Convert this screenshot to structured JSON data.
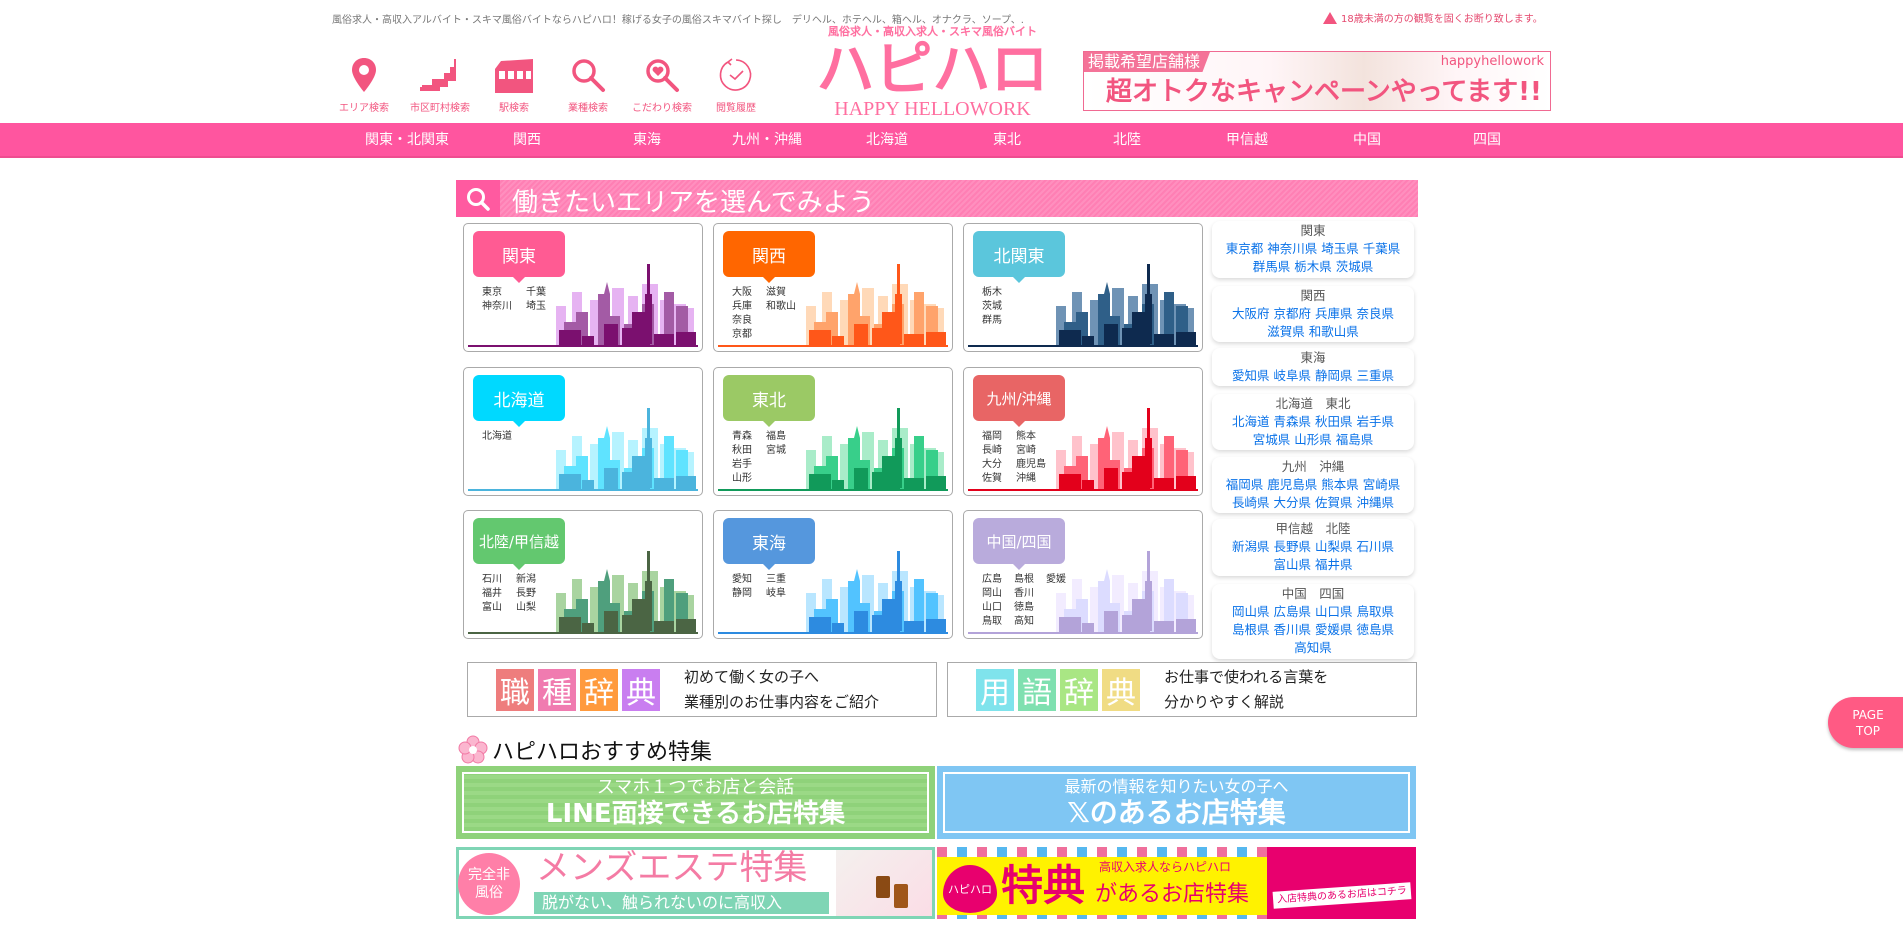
{
  "header": {
    "tagline": "風俗求人・高収入アルバイト・スキマ風俗バイトならハピハロ！稼げる女子の風俗スキマバイト探し　デリヘル、ホテヘル、箱ヘル、オナクラ、ソープ、.",
    "age_warning": "18歳未満の方の観覧を固くお断り致します。",
    "logo": {
      "subtitle": "風俗求人・高収入求人・スキマ風俗バイト",
      "main": "ハピハロ",
      "english": "HAPPY HELLOWORK"
    },
    "nav_icons": [
      {
        "label": "エリア検索",
        "icon": "map-pin-icon"
      },
      {
        "label": "市区町村検索",
        "icon": "japan-map-icon"
      },
      {
        "label": "駅検索",
        "icon": "train-icon"
      },
      {
        "label": "業種検索",
        "icon": "search-icon"
      },
      {
        "label": "こだわり検索",
        "icon": "heart-search-icon"
      },
      {
        "label": "閲覧履歴",
        "icon": "history-clock-icon"
      }
    ],
    "ad_banner": {
      "tag": "掲載希望店舗様",
      "brand": "happyhellowork",
      "message": "超オトクなキャンペーンやってます!!"
    }
  },
  "region_nav": [
    "関東・北関東",
    "関西",
    "東海",
    "九州・沖縄",
    "北海道",
    "東北",
    "北陸",
    "甲信越",
    "中国",
    "四国"
  ],
  "area_section": {
    "title": "働きたいエリアを選んでみよう",
    "cards": [
      {
        "label": "関東",
        "color": "#ff5b93",
        "sky": [
          "#7b106f",
          "#a35ba5",
          "#e6b3f2"
        ],
        "prefs": [
          [
            "東京",
            "神奈川"
          ],
          [
            "千葉",
            "埼玉"
          ]
        ]
      },
      {
        "label": "関西",
        "color": "#ff6600",
        "sky": [
          "#ff5719",
          "#ffa36b",
          "#ffd9b8"
        ],
        "prefs": [
          [
            "大阪",
            "兵庫",
            "奈良",
            "京都"
          ],
          [
            "滋賀",
            "和歌山"
          ]
        ]
      },
      {
        "label": "北関東",
        "color": "#5bc6dc",
        "sky": [
          "#0e2a4f",
          "#2f5f88",
          "#6f93b5"
        ],
        "prefs": [
          [
            "栃木",
            "茨城",
            "群馬"
          ]
        ]
      },
      {
        "label": "北海道",
        "color": "#00d9ff",
        "sky": [
          "#4bb4dd",
          "#5fe3ff",
          "#b6f3ff"
        ],
        "prefs": [
          [
            "北海道"
          ]
        ]
      },
      {
        "label": "東北",
        "color": "#9bc965",
        "sky": [
          "#119a5a",
          "#38cf8a",
          "#a9ecc9"
        ],
        "prefs": [
          [
            "青森",
            "秋田",
            "岩手",
            "山形"
          ],
          [
            "福島",
            "宮城"
          ]
        ]
      },
      {
        "label": "九州/沖縄",
        "color": "#e86565",
        "sky": [
          "#e3001b",
          "#ff6377",
          "#ffc2cb"
        ],
        "prefs": [
          [
            "福岡",
            "長崎",
            "大分",
            "佐賀"
          ],
          [
            "熊本",
            "宮崎",
            "鹿児島",
            "沖縄"
          ]
        ]
      },
      {
        "label": "北陸/甲信越",
        "color": "#63c86f",
        "sky": [
          "#4b6544",
          "#4f9f7d",
          "#a9d4a0"
        ],
        "prefs": [
          [
            "石川",
            "福井",
            "富山"
          ],
          [
            "新潟",
            "長野",
            "山梨"
          ]
        ]
      },
      {
        "label": "東海",
        "color": "#5597dd",
        "sky": [
          "#2d8be0",
          "#52c3ff",
          "#b9e6ff"
        ],
        "prefs": [
          [
            "愛知",
            "静岡"
          ],
          [
            "三重",
            "岐阜"
          ]
        ]
      },
      {
        "label": "中国/四国",
        "color": "#b9abdc",
        "sky": [
          "#b3a3d9",
          "#dcdcff",
          "#f2ecff"
        ],
        "prefs": [
          [
            "広島",
            "岡山",
            "山口",
            "鳥取"
          ],
          [
            "島根",
            "香川",
            "徳島",
            "高知"
          ],
          [
            "愛媛"
          ]
        ]
      }
    ],
    "pref_lists": [
      {
        "heading": "関東",
        "prefs": [
          "東京都",
          "神奈川県",
          "埼玉県",
          "千葉県",
          "群馬県",
          "栃木県",
          "茨城県"
        ]
      },
      {
        "heading": "関西",
        "prefs": [
          "大阪府",
          "京都府",
          "兵庫県",
          "奈良県",
          "滋賀県",
          "和歌山県"
        ]
      },
      {
        "heading": "東海",
        "prefs": [
          "愛知県",
          "岐阜県",
          "静岡県",
          "三重県"
        ]
      },
      {
        "heading": "北海道　東北",
        "prefs": [
          "北海道",
          "青森県",
          "秋田県",
          "岩手県",
          "宮城県",
          "山形県",
          "福島県"
        ]
      },
      {
        "heading": "九州　沖縄",
        "prefs": [
          "福岡県",
          "鹿児島県",
          "熊本県",
          "宮崎県",
          "長崎県",
          "大分県",
          "佐賀県",
          "沖縄県"
        ]
      },
      {
        "heading": "甲信越　北陸",
        "prefs": [
          "新潟県",
          "長野県",
          "山梨県",
          "石川県",
          "富山県",
          "福井県"
        ]
      },
      {
        "heading": "中国　四国",
        "prefs": [
          "岡山県",
          "広島県",
          "山口県",
          "鳥取県",
          "島根県",
          "香川県",
          "愛媛県",
          "徳島県",
          "高知県"
        ]
      }
    ]
  },
  "dictionaries": [
    {
      "chars": [
        "職",
        "種",
        "辞",
        "典"
      ],
      "colors": [
        "#ee7d7d",
        "#f07bb0",
        "#ff9a3d",
        "#c97ef0"
      ],
      "line1": "初めて働く女の子へ",
      "line2": "業種別のお仕事内容をご紹介"
    },
    {
      "chars": [
        "用",
        "語",
        "辞",
        "典"
      ],
      "colors": [
        "#7fe3ec",
        "#7fe0b0",
        "#a9e684",
        "#f0dc84"
      ],
      "line1": "お仕事で使われる言葉を",
      "line2": "分かりやすく解説"
    }
  ],
  "features": {
    "heading": "ハピハロおすすめ特集",
    "banners": [
      {
        "line1": "スマホ１つでお店と会話",
        "line2": "LINE面接できるお店特集"
      },
      {
        "line1": "最新の情報を知りたい女の子へ",
        "line2": "𝕏のあるお店特集"
      },
      {
        "badge": "完全非風俗",
        "line1": "メンズエステ特集",
        "line2": "脱がない、触られないのに高収入"
      },
      {
        "heart": "ハピハロ",
        "big": "特典",
        "small": "高収入求人ならハピハロ",
        "rest": "があるお店特集",
        "tag": "入店特典のあるお店はコチラ"
      }
    ]
  },
  "page_top": {
    "line1": "PAGE",
    "line2": "TOP"
  }
}
